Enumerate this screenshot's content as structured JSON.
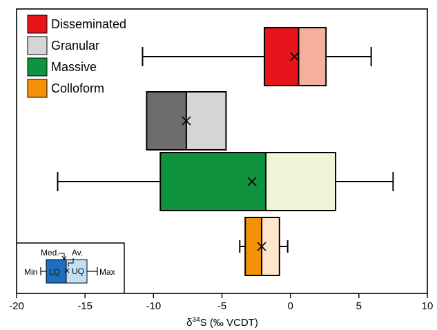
{
  "chart_data": {
    "type": "box",
    "xlim": [
      -20,
      10
    ],
    "xticks": [
      -20,
      -15,
      -10,
      -5,
      0,
      5,
      10
    ],
    "xlabel_main": "δ",
    "xlabel_sup": "34",
    "xlabel_rest": "S (‰ VCDT)",
    "legend_position": "top-left",
    "series": [
      {
        "name": "Disseminated",
        "min": -10.8,
        "q1": -1.9,
        "median": 0.6,
        "mean": 0.3,
        "q3": 2.6,
        "max": 5.9,
        "color_lower": "#e8141b",
        "color_upper": "#f4b09a"
      },
      {
        "name": "Granular",
        "min": null,
        "q1": -10.5,
        "median": -7.6,
        "mean": -7.6,
        "q3": -4.7,
        "max": null,
        "color_lower": "#6d6d6d",
        "color_upper": "#d5d5d5"
      },
      {
        "name": "Massive",
        "min": -17.0,
        "q1": -9.5,
        "median": -1.8,
        "mean": -2.8,
        "q3": 3.3,
        "max": 7.5,
        "color_lower": "#10933e",
        "color_upper": "#f1f5d8"
      },
      {
        "name": "Colloform",
        "min": -3.7,
        "q1": -3.3,
        "median": -2.1,
        "mean": -2.1,
        "q3": -0.8,
        "max": -0.2,
        "color_lower": "#f39208",
        "color_upper": "#fde6cd"
      }
    ]
  },
  "key": {
    "med": "Med.",
    "av": "Av.",
    "min": "Min",
    "lq": "LQ",
    "uq": "UQ",
    "max": "Max",
    "lq_color": "#1b6fc0",
    "uq_color": "#c4dff3"
  }
}
